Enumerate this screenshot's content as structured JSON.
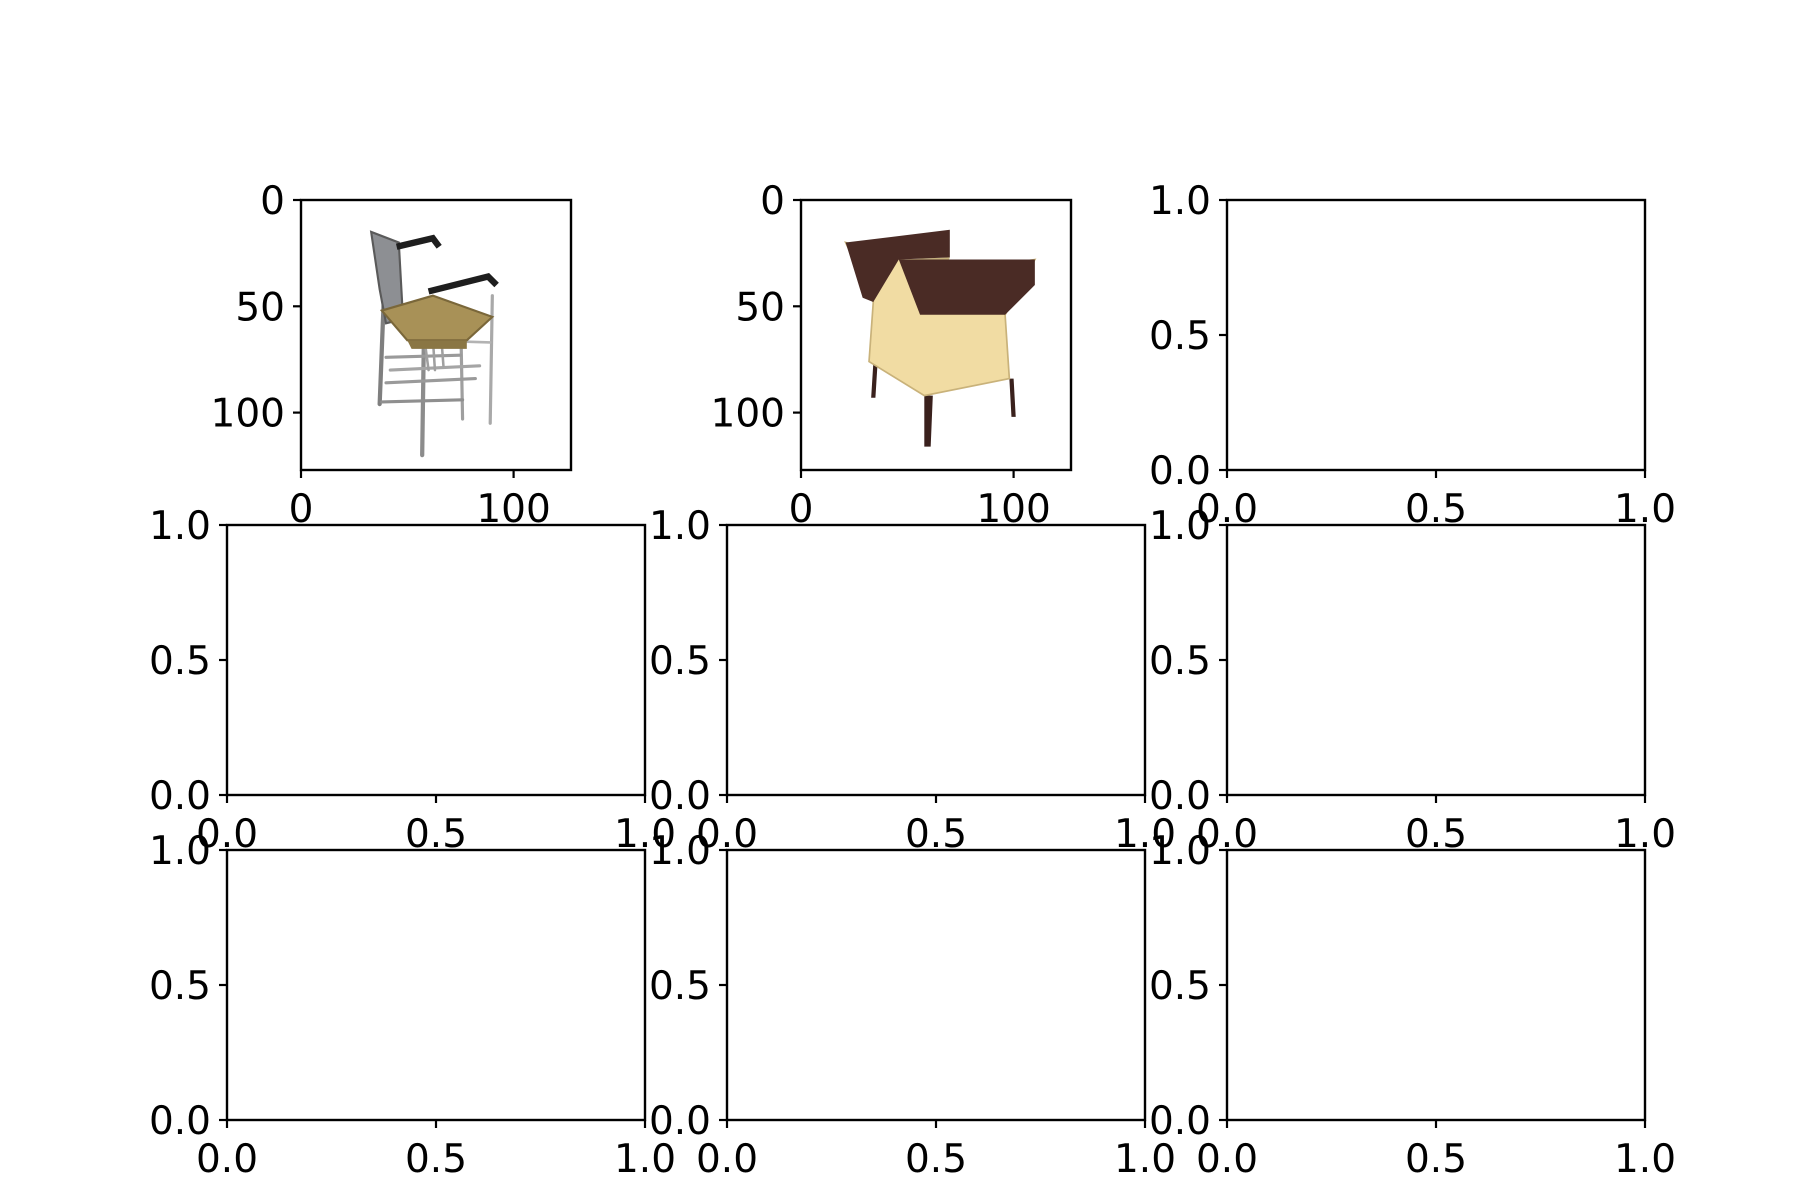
{
  "figure": {
    "rows": 3,
    "cols": 3,
    "background": "#ffffff",
    "axis_color": "#000000"
  },
  "chart_data": [
    {
      "type": "image",
      "subject": "bar-stool-chair",
      "xlim": [
        0,
        127
      ],
      "ylim": [
        127,
        0
      ],
      "xticks": [
        0,
        100
      ],
      "yticks": [
        0,
        50,
        100
      ],
      "xtick_labels": [
        "0",
        "100"
      ],
      "ytick_labels": [
        "0",
        "50",
        "100"
      ],
      "colors": {
        "seat": "#a89157",
        "back": "#8d8f93",
        "frame": "#b9b9b9",
        "armrest": "#1e1e1e"
      }
    },
    {
      "type": "image",
      "subject": "upholstered-armchair",
      "xlim": [
        0,
        127
      ],
      "ylim": [
        127,
        0
      ],
      "xticks": [
        0,
        100
      ],
      "yticks": [
        0,
        50,
        100
      ],
      "xtick_labels": [
        "0",
        "100"
      ],
      "ytick_labels": [
        "0",
        "50",
        "100"
      ],
      "colors": {
        "body": "#f1dca3",
        "trim": "#4a2b25",
        "legs": "#3a211d"
      }
    },
    {
      "type": "empty",
      "xlim": [
        0,
        1
      ],
      "ylim": [
        0,
        1
      ],
      "xticks": [
        0,
        0.5,
        1
      ],
      "yticks": [
        0,
        0.5,
        1
      ],
      "xtick_labels": [
        "0.0",
        "0.5",
        "1.0"
      ],
      "ytick_labels": [
        "0.0",
        "0.5",
        "1.0"
      ]
    },
    {
      "type": "empty",
      "xlim": [
        0,
        1
      ],
      "ylim": [
        0,
        1
      ],
      "xticks": [
        0,
        0.5,
        1
      ],
      "yticks": [
        0,
        0.5,
        1
      ],
      "xtick_labels": [
        "0.0",
        "0.5",
        "1.0"
      ],
      "ytick_labels": [
        "0.0",
        "0.5",
        "1.0"
      ]
    },
    {
      "type": "empty",
      "xlim": [
        0,
        1
      ],
      "ylim": [
        0,
        1
      ],
      "xticks": [
        0,
        0.5,
        1
      ],
      "yticks": [
        0,
        0.5,
        1
      ],
      "xtick_labels": [
        "0.0",
        "0.5",
        "1.0"
      ],
      "ytick_labels": [
        "0.0",
        "0.5",
        "1.0"
      ]
    },
    {
      "type": "empty",
      "xlim": [
        0,
        1
      ],
      "ylim": [
        0,
        1
      ],
      "xticks": [
        0,
        0.5,
        1
      ],
      "yticks": [
        0,
        0.5,
        1
      ],
      "xtick_labels": [
        "0.0",
        "0.5",
        "1.0"
      ],
      "ytick_labels": [
        "0.0",
        "0.5",
        "1.0"
      ]
    },
    {
      "type": "empty",
      "xlim": [
        0,
        1
      ],
      "ylim": [
        0,
        1
      ],
      "xticks": [
        0,
        0.5,
        1
      ],
      "yticks": [
        0,
        0.5,
        1
      ],
      "xtick_labels": [
        "0.0",
        "0.5",
        "1.0"
      ],
      "ytick_labels": [
        "0.0",
        "0.5",
        "1.0"
      ]
    },
    {
      "type": "empty",
      "xlim": [
        0,
        1
      ],
      "ylim": [
        0,
        1
      ],
      "xticks": [
        0,
        0.5,
        1
      ],
      "yticks": [
        0,
        0.5,
        1
      ],
      "xtick_labels": [
        "0.0",
        "0.5",
        "1.0"
      ],
      "ytick_labels": [
        "0.0",
        "0.5",
        "1.0"
      ]
    },
    {
      "type": "empty",
      "xlim": [
        0,
        1
      ],
      "ylim": [
        0,
        1
      ],
      "xticks": [
        0,
        0.5,
        1
      ],
      "yticks": [
        0,
        0.5,
        1
      ],
      "xtick_labels": [
        "0.0",
        "0.5",
        "1.0"
      ],
      "ytick_labels": [
        "0.0",
        "0.5",
        "1.0"
      ]
    }
  ]
}
